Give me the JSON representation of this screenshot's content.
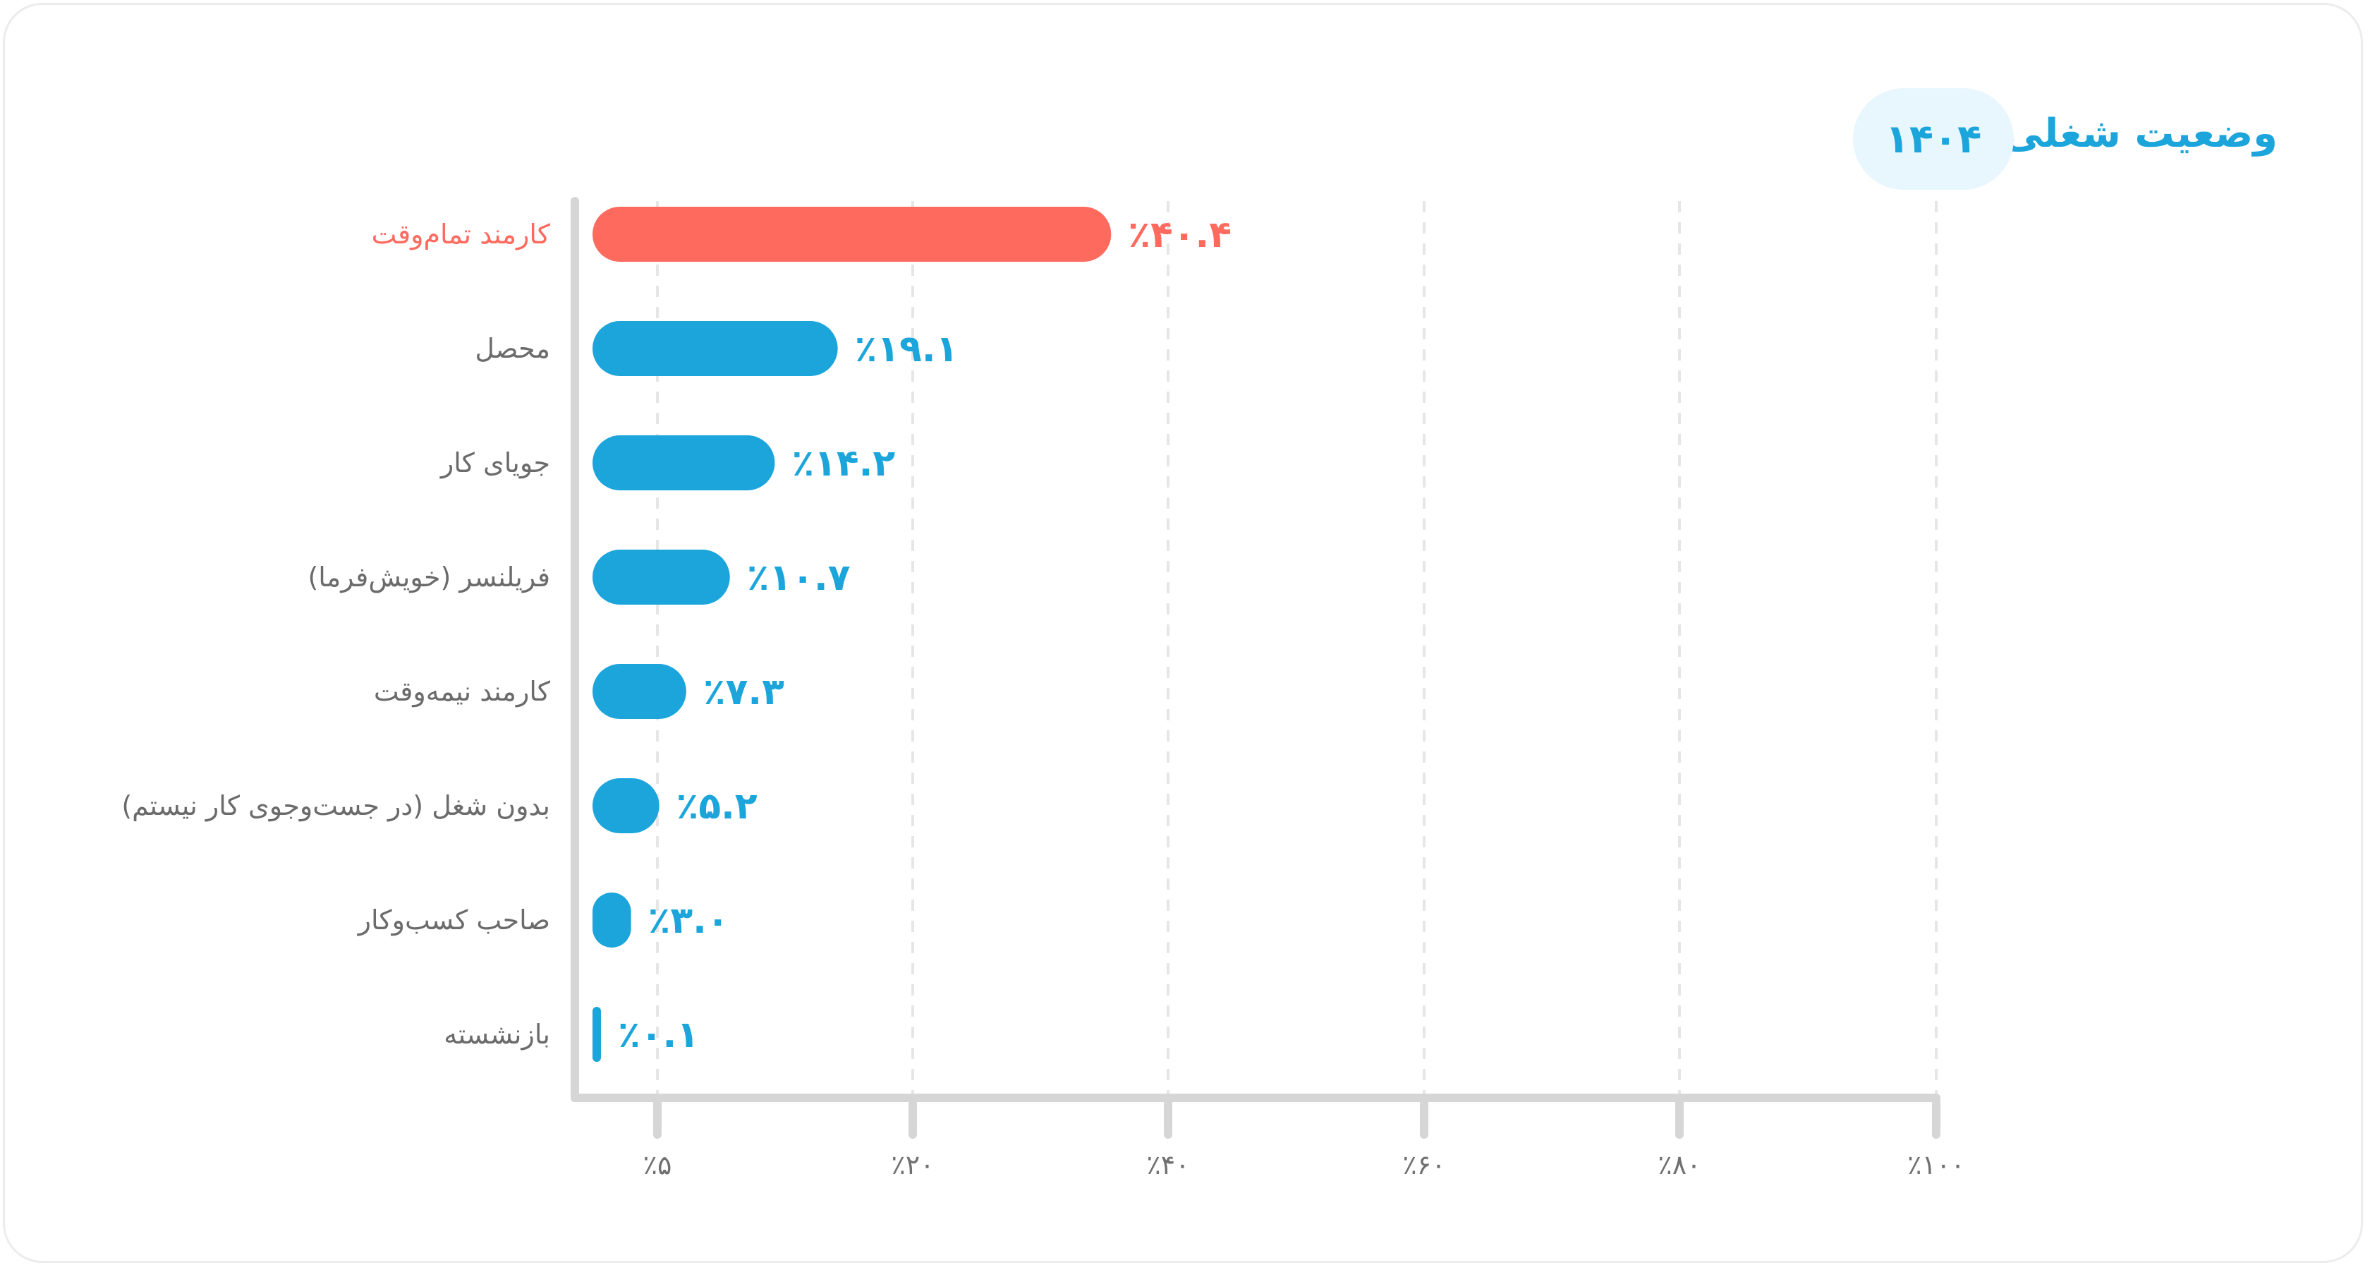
{
  "header": {
    "title": "وضعیت شغلی",
    "year": "۱۴۰۴"
  },
  "colors": {
    "highlight": "#ff6a5f",
    "bar": "#1ba5db",
    "axis": "#d6d6d6",
    "grid": "#e6e6e6"
  },
  "chart_data": {
    "type": "bar",
    "orientation": "horizontal",
    "title": "وضعیت شغلی",
    "subtitle": "۱۴۰۴",
    "categories": [
      "کارمند تمام‌وقت",
      "محصل",
      "جویای کار",
      "فریلنسر (خویش‌فرما)",
      "کارمند نیمه‌وقت",
      "بدون شغل (در جست‌وجوی کار نیستم)",
      "صاحب کسب‌وکار",
      "بازنشسته"
    ],
    "values": [
      40.4,
      19.1,
      14.2,
      10.7,
      7.3,
      5.2,
      3.0,
      0.1
    ],
    "value_labels": [
      "٪۴۰.۴",
      "٪۱۹.۱",
      "٪۱۴.۲",
      "٪۱۰.۷",
      "٪۷.۳",
      "٪۵.۲",
      "٪۳.۰",
      "٪۰.۱"
    ],
    "highlight_index": 0,
    "x_ticks": [
      5,
      20,
      40,
      60,
      80,
      100
    ],
    "x_tick_labels": [
      "٪۵",
      "٪۲۰",
      "٪۴۰",
      "٪۶۰",
      "٪۸۰",
      "٪۱۰۰"
    ],
    "xlim": [
      0,
      100
    ],
    "grid": true,
    "xlabel": "",
    "ylabel": ""
  }
}
